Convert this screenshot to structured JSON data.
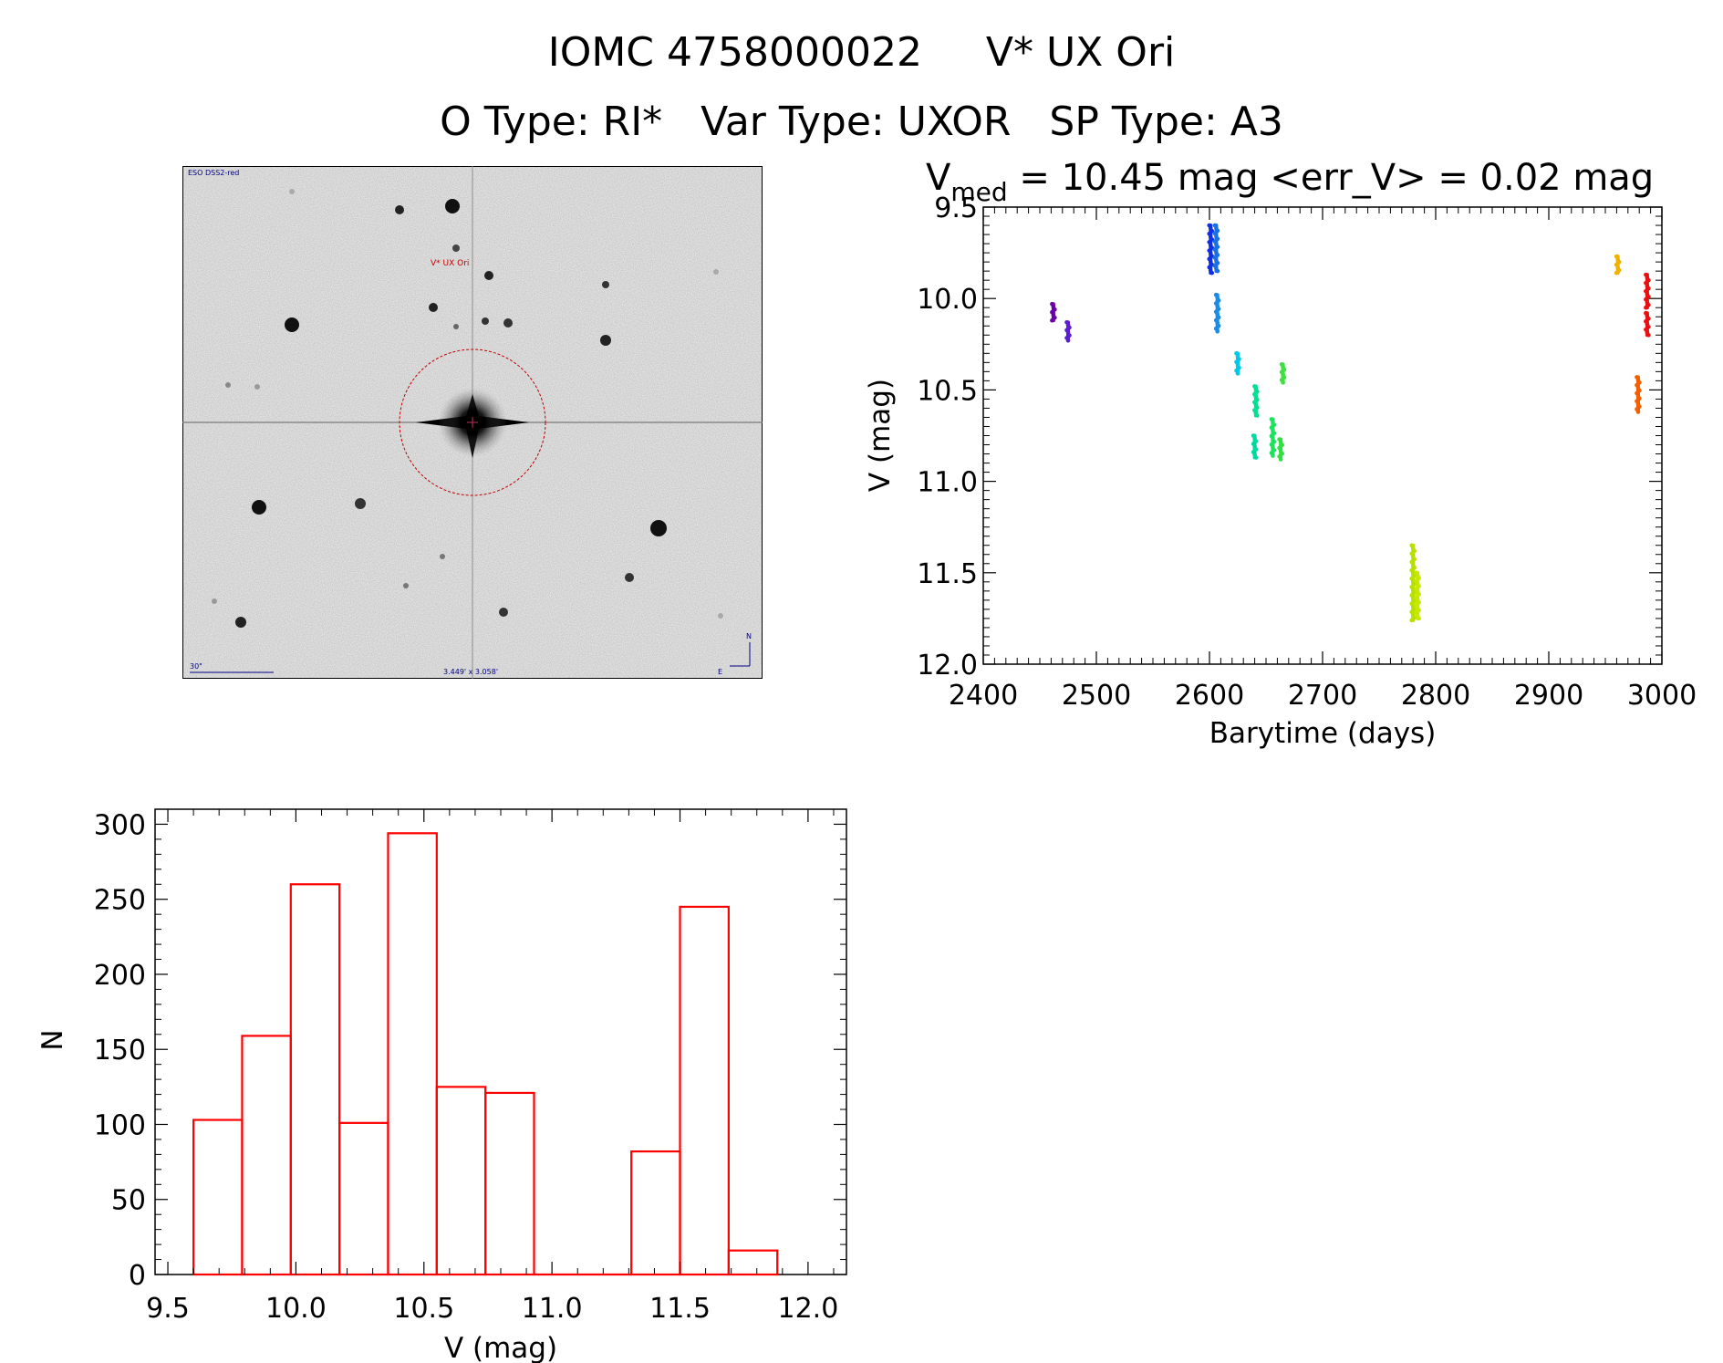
{
  "header": {
    "line1": "IOMC 4758000022     V* UX Ori",
    "line2": "O Type: RI*   Var Type: UXOR   SP Type: A3"
  },
  "finder_chart": {
    "survey_label": "ESO DSS2-red",
    "target_label": "V* UX Ori",
    "scale_label": "30\"",
    "fov_label": "3.449' x 3.058'",
    "north_label": "N",
    "east_label": "E"
  },
  "chart_data": [
    {
      "type": "scatter",
      "title_main": "V",
      "title_sub": "med",
      "title_rest": " = 10.45 mag <err_V> = 0.02 mag",
      "xlabel": "Barytime (days)",
      "ylabel": "V (mag)",
      "xlim": [
        2400,
        3000
      ],
      "ylim": [
        12.0,
        9.5
      ],
      "y_inverted": true,
      "xticks": [
        2400,
        2500,
        2600,
        2700,
        2800,
        2900,
        3000
      ],
      "yticks": [
        9.5,
        10.0,
        10.5,
        11.0,
        11.5,
        12.0
      ],
      "xtick_labels": [
        "2400",
        "2500",
        "2600",
        "2700",
        "2800",
        "2900",
        "3000"
      ],
      "ytick_labels": [
        "9.5",
        "10.0",
        "10.5",
        "11.0",
        "11.5",
        "12.0"
      ],
      "groups": [
        {
          "x": 2462,
          "y_min": 10.03,
          "y_max": 10.12,
          "color": "#6a00a8"
        },
        {
          "x": 2475,
          "y_min": 10.13,
          "y_max": 10.23,
          "color": "#5a20d0"
        },
        {
          "x": 2601,
          "y_min": 9.6,
          "y_max": 9.86,
          "color": "#1030e0"
        },
        {
          "x": 2606,
          "y_min": 9.6,
          "y_max": 9.85,
          "color": "#1a70e0"
        },
        {
          "x": 2607,
          "y_min": 9.98,
          "y_max": 10.18,
          "color": "#1a8ce8"
        },
        {
          "x": 2625,
          "y_min": 10.3,
          "y_max": 10.41,
          "color": "#00c8e8"
        },
        {
          "x": 2640,
          "y_min": 10.75,
          "y_max": 10.87,
          "color": "#00d8a0"
        },
        {
          "x": 2641,
          "y_min": 10.48,
          "y_max": 10.64,
          "color": "#00e090"
        },
        {
          "x": 2656,
          "y_min": 10.66,
          "y_max": 10.86,
          "color": "#20e060"
        },
        {
          "x": 2663,
          "y_min": 10.77,
          "y_max": 10.88,
          "color": "#30e040"
        },
        {
          "x": 2665,
          "y_min": 10.36,
          "y_max": 10.46,
          "color": "#40e040"
        },
        {
          "x": 2780,
          "y_min": 11.35,
          "y_max": 11.76,
          "color": "#b8e000"
        },
        {
          "x": 2784,
          "y_min": 11.5,
          "y_max": 11.75,
          "color": "#c8e800"
        },
        {
          "x": 2961,
          "y_min": 9.77,
          "y_max": 9.86,
          "color": "#f0b000"
        },
        {
          "x": 2979,
          "y_min": 10.43,
          "y_max": 10.62,
          "color": "#f06000"
        },
        {
          "x": 2987,
          "y_min": 9.87,
          "y_max": 10.05,
          "color": "#e81010"
        },
        {
          "x": 2987,
          "y_min": 10.08,
          "y_max": 10.2,
          "color": "#e81010"
        }
      ]
    },
    {
      "type": "bar",
      "xlabel": "V (mag)",
      "ylabel": "N",
      "xlim": [
        9.45,
        12.15
      ],
      "ylim": [
        0,
        310
      ],
      "bin_width": 0.19,
      "bin_left_edges": [
        9.6,
        9.79,
        9.98,
        10.17,
        10.36,
        10.55,
        10.74,
        10.93,
        11.12,
        11.31,
        11.5,
        11.69
      ],
      "values": [
        103,
        159,
        260,
        101,
        294,
        125,
        121,
        0,
        0,
        82,
        245,
        16
      ],
      "bar_color": "#ff0000",
      "xticks": [
        9.5,
        10.0,
        10.5,
        11.0,
        11.5,
        12.0
      ],
      "yticks": [
        0,
        50,
        100,
        150,
        200,
        250,
        300
      ],
      "xtick_labels": [
        "9.5",
        "10.0",
        "10.5",
        "11.0",
        "11.5",
        "12.0"
      ],
      "ytick_labels": [
        "0",
        "50",
        "100",
        "150",
        "200",
        "250",
        "300"
      ]
    }
  ]
}
